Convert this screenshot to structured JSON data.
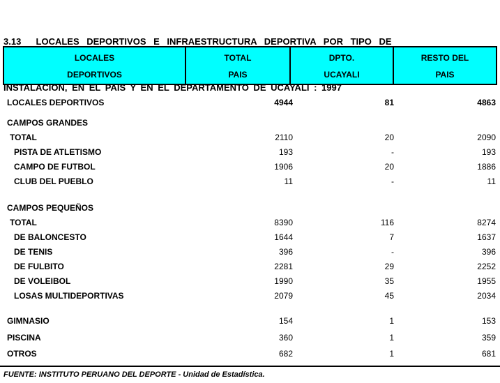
{
  "title": {
    "line1": "3.13  LOCALES DEPORTIVOS E INFRAESTRUCTURA DEPORTIVA POR TIPO DE",
    "line2": "INSTALACION, EN EL PAIS Y EN EL DEPARTAMENTO DE UCAYALI : 1997"
  },
  "colors": {
    "header_bg": "#00FFFF",
    "text": "#000000",
    "page_bg": "#FFFFFF"
  },
  "table": {
    "header": {
      "col1_line1": "LOCALES",
      "col1_line2": "DEPORTIVOS",
      "col2_line1": "TOTAL",
      "col2_line2": "PAIS",
      "col3_line1": "DPTO.",
      "col3_line2": "UCAYALI",
      "col4_line1": "RESTO DEL",
      "col4_line2": "PAIS"
    },
    "rows": [
      {
        "label": "LOCALES DEPORTIVOS",
        "total_pais": "4944",
        "dpto_ucayali": "81",
        "resto_del_pais": "4863"
      },
      {
        "label": "CAMPOS GRANDES",
        "total_pais": "",
        "dpto_ucayali": "",
        "resto_del_pais": ""
      },
      {
        "label": "TOTAL",
        "total_pais": "2110",
        "dpto_ucayali": "20",
        "resto_del_pais": "2090"
      },
      {
        "label": "PISTA DE ATLETISMO",
        "total_pais": "193",
        "dpto_ucayali": "-",
        "resto_del_pais": "193"
      },
      {
        "label": "CAMPO DE FUTBOL",
        "total_pais": "1906",
        "dpto_ucayali": "20",
        "resto_del_pais": "1886"
      },
      {
        "label": "CLUB DEL PUEBLO",
        "total_pais": "11",
        "dpto_ucayali": "-",
        "resto_del_pais": "11"
      },
      {
        "label": "CAMPOS PEQUEÑOS",
        "total_pais": "",
        "dpto_ucayali": "",
        "resto_del_pais": ""
      },
      {
        "label": "TOTAL",
        "total_pais": "8390",
        "dpto_ucayali": "116",
        "resto_del_pais": "8274"
      },
      {
        "label": "DE BALONCESTO",
        "total_pais": "1644",
        "dpto_ucayali": "7",
        "resto_del_pais": "1637"
      },
      {
        "label": "DE TENIS",
        "total_pais": "396",
        "dpto_ucayali": "-",
        "resto_del_pais": "396"
      },
      {
        "label": "DE FULBITO",
        "total_pais": "2281",
        "dpto_ucayali": "29",
        "resto_del_pais": "2252"
      },
      {
        "label": "DE VOLEIBOL",
        "total_pais": "1990",
        "dpto_ucayali": "35",
        "resto_del_pais": "1955"
      },
      {
        "label": "LOSAS MULTIDEPORTIVAS",
        "total_pais": "2079",
        "dpto_ucayali": "45",
        "resto_del_pais": "2034"
      },
      {
        "label": "GIMNASIO",
        "total_pais": "154",
        "dpto_ucayali": "1",
        "resto_del_pais": "153"
      },
      {
        "label": "PISCINA",
        "total_pais": "360",
        "dpto_ucayali": "1",
        "resto_del_pais": "359"
      },
      {
        "label": "OTROS",
        "total_pais": "682",
        "dpto_ucayali": "1",
        "resto_del_pais": "681"
      }
    ]
  },
  "footer": {
    "source": "FUENTE: INSTITUTO PERUANO DEL DEPORTE - Unidad de Estadística."
  }
}
